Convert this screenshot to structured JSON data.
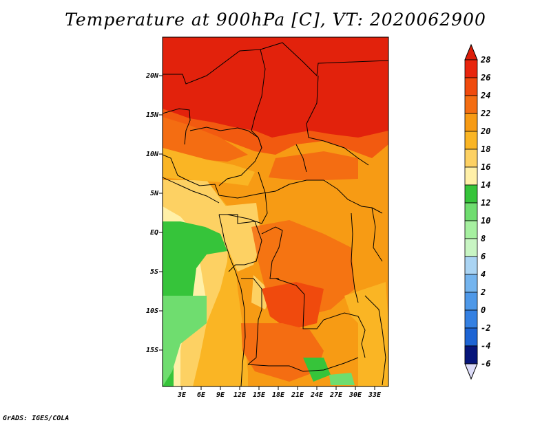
{
  "map": {
    "title": "Temperature at 900hPa [C], VT: 2020062900",
    "footer": "GrADS: IGES/COLA",
    "lat_ticks": [
      "20N",
      "15N",
      "10N",
      "5N",
      "EQ",
      "5S",
      "10S",
      "15S"
    ],
    "lon_ticks": [
      "3E",
      "6E",
      "9E",
      "12E",
      "15E",
      "18E",
      "21E",
      "24E",
      "27E",
      "30E",
      "33E"
    ],
    "colorbar": {
      "labels": [
        "28",
        "26",
        "24",
        "22",
        "20",
        "18",
        "16",
        "14",
        "12",
        "10",
        "8",
        "6",
        "4",
        "2",
        "0",
        "-2",
        "-4",
        "-6"
      ],
      "colors": [
        "#e8250d",
        "#f04a0d",
        "#f46d12",
        "#f79b14",
        "#fab524",
        "#fdd163",
        "#fff0a8",
        "#36c43a",
        "#6fdd6f",
        "#a6f0a0",
        "#c8f5c3",
        "#aad4f3",
        "#74b4ee",
        "#4e98e8",
        "#3480e2",
        "#1d64d4",
        "#0e43b4",
        "#06157a"
      ],
      "top_arrow_color": "#dc1e0a",
      "bottom_arrow_color": "#dcdcf8"
    },
    "field_colors": {
      "hot": "#e2220c",
      "warm": "#f25a10",
      "orange": "#f79b14",
      "light_orange": "#fab524",
      "yellow": "#fdd163",
      "pale": "#fff0a8",
      "green": "#36c43a",
      "light_green": "#6fdd6f"
    }
  }
}
